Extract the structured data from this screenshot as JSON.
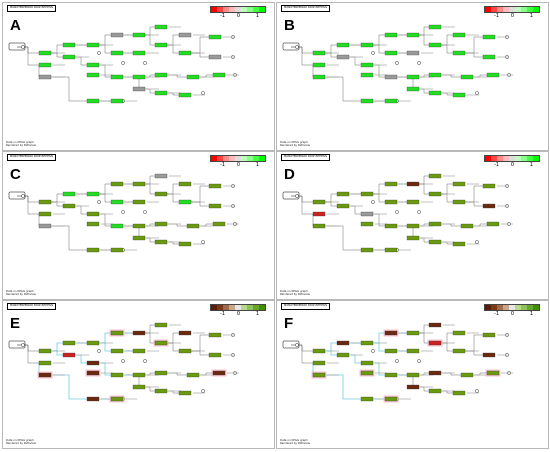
{
  "pathway_title": "MONOTERPENOID BIOSYNTHESIS",
  "credit_line1": "Data on KEGG graph",
  "credit_line2": "Rendered by Pathview",
  "panels": [
    {
      "label": "A",
      "legend": {
        "low": "-1",
        "mid": "0",
        "high": "1"
      },
      "scheme": "red-green",
      "highlight": false
    },
    {
      "label": "B",
      "legend": {
        "low": "-1",
        "mid": "0",
        "high": "1"
      },
      "scheme": "red-green",
      "highlight": false
    },
    {
      "label": "C",
      "legend": {
        "low": "-1",
        "mid": "0",
        "high": "1"
      },
      "scheme": "red-green",
      "highlight": false
    },
    {
      "label": "D",
      "legend": {
        "low": "-1",
        "mid": "0",
        "high": "1"
      },
      "scheme": "red-green",
      "highlight": false
    },
    {
      "label": "E",
      "legend": {
        "low": "-1",
        "mid": "0",
        "high": "1"
      },
      "scheme": "brown-green",
      "highlight": true
    },
    {
      "label": "F",
      "legend": {
        "low": "-1",
        "mid": "0",
        "high": "1"
      },
      "scheme": "brown-green",
      "highlight": true
    }
  ],
  "colors": {
    "gene_green": "#22dd22",
    "gene_olive": "#6a9a10",
    "gene_grey": "#9a9a9a",
    "gene_red": "#cc2222",
    "gene_brown": "#6b2a10",
    "highlight_cyan": "#6fd0e0",
    "highlight_pink": "#f2a9b8",
    "legend_red_green": [
      "#ff0000",
      "#ff4444",
      "#ff8888",
      "#ffbbbb",
      "#dddddd",
      "#bbffbb",
      "#88ff88",
      "#44ff44",
      "#00ff00"
    ],
    "legend_brown_green": [
      "#5a1e0a",
      "#7a3a18",
      "#a06b4a",
      "#c9a58c",
      "#e6e6e6",
      "#b7d98a",
      "#8fc25a",
      "#66a62a",
      "#3f8f00"
    ]
  },
  "gene_states": {
    "A": [
      "g",
      "g",
      "y",
      "g",
      "g",
      "g",
      "g",
      "y",
      "g",
      "g",
      "g",
      "g",
      "g",
      "y",
      "g",
      "g",
      "y",
      "g",
      "g",
      "g",
      "g",
      "g",
      "g",
      "y",
      "g",
      "g",
      "g",
      "g"
    ],
    "B": [
      "g",
      "g",
      "g",
      "g",
      "y",
      "g",
      "g",
      "g",
      "g",
      "g",
      "y",
      "g",
      "g",
      "g",
      "g",
      "g",
      "g",
      "g",
      "y",
      "g",
      "g",
      "g",
      "g",
      "g",
      "g",
      "g",
      "g",
      "g"
    ],
    "C": [
      "o",
      "o",
      "y",
      "g",
      "o",
      "g",
      "o",
      "o",
      "g",
      "o",
      "o",
      "y",
      "o",
      "o",
      "g",
      "o",
      "o",
      "o",
      "g",
      "o",
      "o",
      "o",
      "o",
      "o",
      "o",
      "o",
      "o",
      "o"
    ],
    "D": [
      "o",
      "r",
      "o",
      "o",
      "o",
      "o",
      "y",
      "o",
      "o",
      "b",
      "o",
      "o",
      "o",
      "o",
      "o",
      "o",
      "b",
      "o",
      "o",
      "o",
      "o",
      "o",
      "o",
      "o",
      "o",
      "o",
      "o",
      "o"
    ],
    "E": [
      "o",
      "o",
      "b",
      "o",
      "r",
      "o",
      "b",
      "o",
      "o",
      "b",
      "o",
      "o",
      "o",
      "b",
      "o",
      "o",
      "o",
      "b",
      "o",
      "o",
      "o",
      "o",
      "b",
      "o",
      "o",
      "o",
      "b",
      "o"
    ],
    "F": [
      "o",
      "o",
      "o",
      "b",
      "o",
      "o",
      "o",
      "b",
      "o",
      "o",
      "o",
      "b",
      "r",
      "o",
      "o",
      "o",
      "b",
      "o",
      "o",
      "o",
      "b",
      "o",
      "o",
      "b",
      "o",
      "o",
      "o",
      "o"
    ]
  }
}
